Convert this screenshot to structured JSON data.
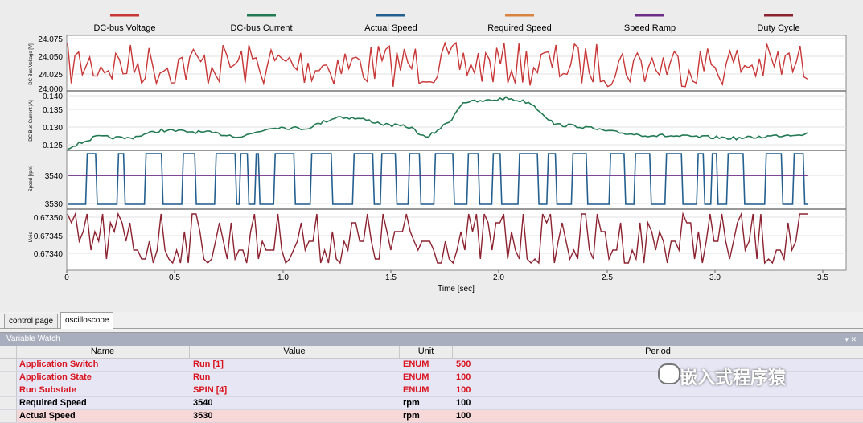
{
  "legend": [
    {
      "label": "DC-bus Voltage",
      "color": "#c83737"
    },
    {
      "label": "DC-bus Current",
      "color": "#227a52"
    },
    {
      "label": "Actual Speed",
      "color": "#235f8f"
    },
    {
      "label": "Required Speed",
      "color": "#d78440"
    },
    {
      "label": "Speed Ramp",
      "color": "#6b2d86"
    },
    {
      "label": "Duty Cycle",
      "color": "#8c2230"
    }
  ],
  "xaxis": {
    "label": "Time [sec]",
    "ticks": [
      "0",
      "0.5",
      "1.0",
      "1.5",
      "2.0",
      "2.5",
      "3.0",
      "3.5"
    ]
  },
  "chart_data": [
    {
      "type": "line",
      "ylabel": "DC Bus Voltage [V]",
      "yticks": [
        "24.075",
        "24.050",
        "24.025",
        "24.000"
      ],
      "series": [
        {
          "name": "DC-bus Voltage"
        }
      ]
    },
    {
      "type": "line",
      "ylabel": "DC Bus Current [A]",
      "yticks": [
        "0.140",
        "0.135",
        "0.130",
        "0.125"
      ],
      "series": [
        {
          "name": "DC-bus Current"
        }
      ]
    },
    {
      "type": "line",
      "ylabel": "Speed [rpm]",
      "yticks": [
        "3540",
        "3530"
      ],
      "series": [
        {
          "name": "Actual Speed"
        },
        {
          "name": "Speed Ramp"
        }
      ]
    },
    {
      "type": "line",
      "ylabel": "IAxis",
      "yticks": [
        "0.67350",
        "0.67345",
        "0.67340"
      ],
      "series": [
        {
          "name": "Duty Cycle"
        }
      ]
    }
  ],
  "tabs": [
    "control page",
    "oscilloscope"
  ],
  "watch": {
    "title": "Variable Watch",
    "pin": "▾ ✕",
    "columns": [
      "Name",
      "Value",
      "Unit",
      "Period"
    ],
    "rows": [
      {
        "name": "Application Switch",
        "value": "Run [1]",
        "unit": "ENUM",
        "period": "500",
        "style": "red"
      },
      {
        "name": "Application State",
        "value": "Run",
        "unit": "ENUM",
        "period": "100",
        "style": "red"
      },
      {
        "name": "Run Substate",
        "value": "SPIN [4]",
        "unit": "ENUM",
        "period": "100",
        "style": "red"
      },
      {
        "name": "Required Speed",
        "value": "3540",
        "unit": "rpm",
        "period": "100",
        "style": "black"
      },
      {
        "name": "Actual Speed",
        "value": "3530",
        "unit": "rpm",
        "period": "100",
        "style": "pink"
      }
    ]
  },
  "watermark": "嵌入式程序猿"
}
